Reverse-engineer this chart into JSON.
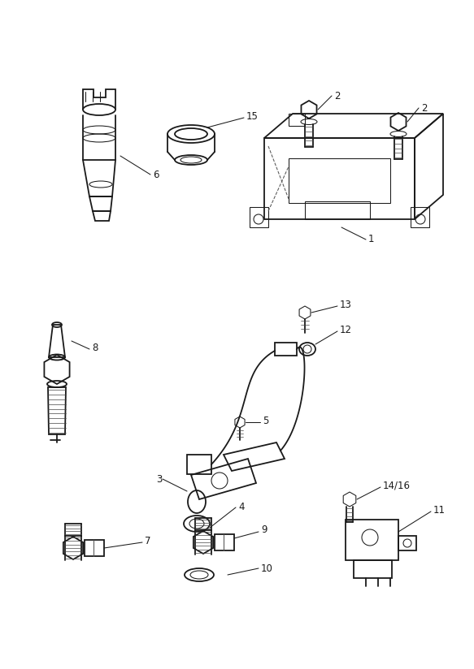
{
  "bg_color": "#ffffff",
  "line_color": "#1a1a1a",
  "lw_main": 1.3,
  "lw_thin": 0.75,
  "figsize": [
    5.83,
    8.24
  ],
  "dpi": 100
}
